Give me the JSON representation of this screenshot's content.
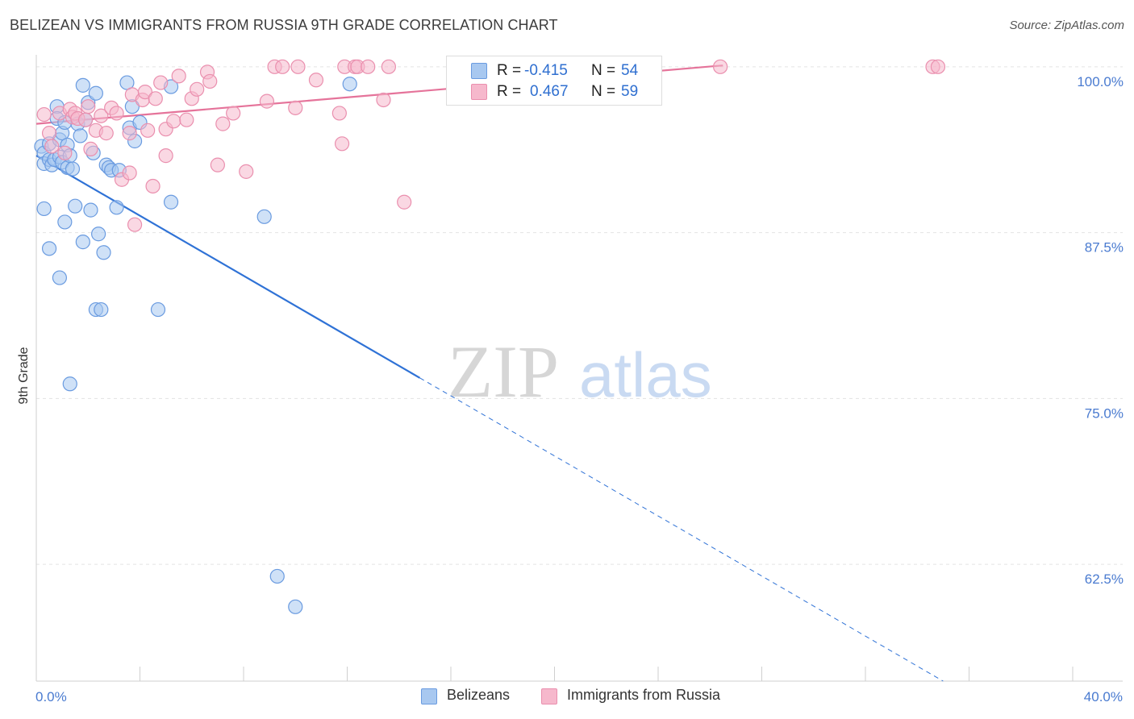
{
  "header": {
    "title": "BELIZEAN VS IMMIGRANTS FROM RUSSIA 9TH GRADE CORRELATION CHART",
    "source": "Source: ZipAtlas.com"
  },
  "legend": {
    "rows": [
      {
        "r_label": "R =",
        "r_value": "-0.415",
        "n_label": "N =",
        "n_value": "54"
      },
      {
        "r_label": "R =",
        "r_value": "0.467",
        "n_label": "N =",
        "n_value": "59"
      }
    ]
  },
  "bottom_legend": [
    {
      "label": "Belizeans"
    },
    {
      "label": "Immigrants from Russia"
    }
  ],
  "colors": {
    "blue_fill": "#a8c8f0",
    "blue_stroke": "#6a9be0",
    "blue_line": "#2f72d6",
    "pink_fill": "#f6b8cc",
    "pink_stroke": "#ea8fae",
    "pink_line": "#e5739a",
    "grid": "#e3e3e3",
    "axis_text": "#4a7bd0"
  },
  "watermark": {
    "part1": "ZIP",
    "part2": "atlas"
  },
  "chart_data": {
    "type": "scatter",
    "title": "BELIZEAN VS IMMIGRANTS FROM RUSSIA 9TH GRADE CORRELATION CHART",
    "xlabel": "",
    "ylabel": "9th Grade",
    "xlim": [
      0,
      40
    ],
    "ylim": [
      53.7,
      100.9
    ],
    "x_tick_labels": [
      "0.0%",
      "40.0%"
    ],
    "y_ticks": [
      {
        "value": 100.0,
        "label": "100.0%"
      },
      {
        "value": 87.5,
        "label": "87.5%"
      },
      {
        "value": 75.0,
        "label": "75.0%"
      },
      {
        "value": 62.5,
        "label": "62.5%"
      }
    ],
    "series": [
      {
        "name": "Belizeans",
        "R": -0.415,
        "N": 54,
        "points": [
          [
            0.2,
            94.0
          ],
          [
            0.3,
            93.5
          ],
          [
            0.3,
            92.7
          ],
          [
            0.5,
            93.0
          ],
          [
            0.5,
            94.2
          ],
          [
            0.6,
            92.6
          ],
          [
            0.7,
            93.0
          ],
          [
            0.8,
            97.0
          ],
          [
            0.8,
            96.1
          ],
          [
            0.9,
            94.5
          ],
          [
            0.9,
            93.2
          ],
          [
            1.0,
            95.0
          ],
          [
            1.0,
            92.8
          ],
          [
            1.1,
            95.8
          ],
          [
            1.2,
            94.1
          ],
          [
            1.2,
            92.4
          ],
          [
            1.3,
            93.3
          ],
          [
            1.4,
            92.3
          ],
          [
            1.5,
            89.5
          ],
          [
            1.6,
            95.7
          ],
          [
            1.7,
            94.8
          ],
          [
            1.8,
            98.6
          ],
          [
            1.9,
            96.0
          ],
          [
            2.0,
            97.3
          ],
          [
            2.1,
            89.2
          ],
          [
            2.2,
            93.5
          ],
          [
            2.3,
            98.0
          ],
          [
            2.4,
            87.4
          ],
          [
            2.3,
            81.7
          ],
          [
            2.5,
            81.7
          ],
          [
            2.6,
            86.0
          ],
          [
            2.7,
            92.6
          ],
          [
            2.8,
            92.4
          ],
          [
            2.9,
            92.2
          ],
          [
            3.1,
            89.4
          ],
          [
            3.2,
            92.2
          ],
          [
            3.5,
            98.8
          ],
          [
            3.6,
            95.4
          ],
          [
            3.7,
            97.0
          ],
          [
            3.8,
            94.4
          ],
          [
            4.0,
            95.8
          ],
          [
            4.7,
            81.7
          ],
          [
            5.2,
            98.5
          ],
          [
            5.2,
            89.8
          ],
          [
            8.8,
            88.7
          ],
          [
            9.3,
            61.6
          ],
          [
            10.0,
            59.3
          ],
          [
            12.1,
            98.7
          ],
          [
            0.3,
            89.3
          ],
          [
            0.5,
            86.3
          ],
          [
            0.9,
            84.1
          ],
          [
            1.1,
            88.3
          ],
          [
            1.3,
            76.1
          ],
          [
            1.8,
            86.8
          ]
        ]
      },
      {
        "name": "Immigrants from Russia",
        "R": 0.467,
        "N": 59,
        "points": [
          [
            0.3,
            96.4
          ],
          [
            0.5,
            95.0
          ],
          [
            0.6,
            94.0
          ],
          [
            0.9,
            96.5
          ],
          [
            1.1,
            93.5
          ],
          [
            1.3,
            96.8
          ],
          [
            1.4,
            96.2
          ],
          [
            1.5,
            96.5
          ],
          [
            1.6,
            96.1
          ],
          [
            1.9,
            96.0
          ],
          [
            2.0,
            97.0
          ],
          [
            2.1,
            93.8
          ],
          [
            2.3,
            95.2
          ],
          [
            2.5,
            96.3
          ],
          [
            2.7,
            95.0
          ],
          [
            2.9,
            96.9
          ],
          [
            3.1,
            96.5
          ],
          [
            3.3,
            91.5
          ],
          [
            3.6,
            95.0
          ],
          [
            3.7,
            97.9
          ],
          [
            3.8,
            88.1
          ],
          [
            4.1,
            97.5
          ],
          [
            4.2,
            98.1
          ],
          [
            4.3,
            95.2
          ],
          [
            4.5,
            91.0
          ],
          [
            4.6,
            97.6
          ],
          [
            4.8,
            98.8
          ],
          [
            5.0,
            95.3
          ],
          [
            5.0,
            93.3
          ],
          [
            5.3,
            95.9
          ],
          [
            5.5,
            99.3
          ],
          [
            5.8,
            96.0
          ],
          [
            6.0,
            97.6
          ],
          [
            6.2,
            98.3
          ],
          [
            6.6,
            99.6
          ],
          [
            6.7,
            98.9
          ],
          [
            7.0,
            92.6
          ],
          [
            7.2,
            95.7
          ],
          [
            7.6,
            96.5
          ],
          [
            8.1,
            92.1
          ],
          [
            8.9,
            97.4
          ],
          [
            9.2,
            100.0
          ],
          [
            9.5,
            100.0
          ],
          [
            10.1,
            100.0
          ],
          [
            10.0,
            96.9
          ],
          [
            10.8,
            99.0
          ],
          [
            11.7,
            96.5
          ],
          [
            11.8,
            94.2
          ],
          [
            11.9,
            100.0
          ],
          [
            12.3,
            100.0
          ],
          [
            12.4,
            100.0
          ],
          [
            12.8,
            100.0
          ],
          [
            13.4,
            97.5
          ],
          [
            13.6,
            100.0
          ],
          [
            14.2,
            89.8
          ],
          [
            26.4,
            100.0
          ],
          [
            34.6,
            100.0
          ],
          [
            34.8,
            100.0
          ],
          [
            3.6,
            92.0
          ]
        ]
      }
    ],
    "trend_lines": [
      {
        "series": "Belizeans",
        "x_start": 0,
        "y_start": 93.3,
        "x_solid_end": 14.8,
        "x_end": 35.0,
        "y_end": 53.7
      },
      {
        "series": "Immigrants from Russia",
        "x_start": 0,
        "y_start": 95.7,
        "x_end": 26.5,
        "y_end": 100.1
      }
    ]
  }
}
